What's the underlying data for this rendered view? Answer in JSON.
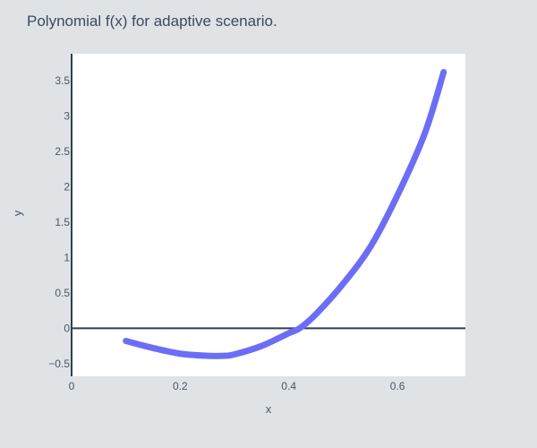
{
  "chart_data": {
    "type": "line",
    "title": "Polynomial f(x) for adaptive scenario.",
    "xlabel": "x",
    "ylabel": "y",
    "xlim": [
      0,
      0.725
    ],
    "ylim": [
      -0.68,
      3.88
    ],
    "x_ticks": [
      0,
      0.2,
      0.4,
      0.6
    ],
    "x_tick_labels": [
      "0",
      "0.2",
      "0.4",
      "0.6"
    ],
    "y_ticks": [
      -0.5,
      0,
      0.5,
      1,
      1.5,
      2,
      2.5,
      3,
      3.5
    ],
    "y_tick_labels": [
      "−0.5",
      "0",
      "0.5",
      "1",
      "1.5",
      "2",
      "2.5",
      "3",
      "3.5"
    ],
    "grid": false,
    "zero_line": true,
    "line_color": "#6b6ef5",
    "zero_line_color": "#2e3f56",
    "series": [
      {
        "x": [
          0.1,
          0.15,
          0.2,
          0.25,
          0.28,
          0.3,
          0.35,
          0.4,
          0.42,
          0.45,
          0.5,
          0.55,
          0.6,
          0.65,
          0.685
        ],
        "values": [
          -0.18,
          -0.28,
          -0.36,
          -0.39,
          -0.39,
          -0.37,
          -0.25,
          -0.07,
          0.0,
          0.2,
          0.63,
          1.15,
          1.88,
          2.75,
          3.62
        ]
      }
    ]
  }
}
